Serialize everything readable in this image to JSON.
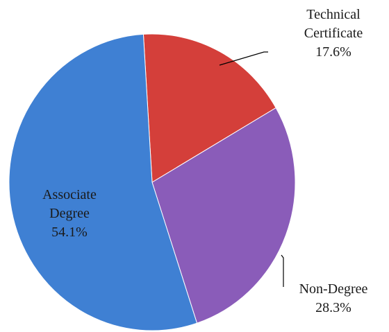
{
  "chart_data": {
    "type": "pie",
    "categories": [
      "Technical Certificate",
      "Non-Degree",
      "Associate Degree"
    ],
    "values": [
      17.6,
      28.3,
      54.1
    ],
    "value_labels": [
      "17.6%",
      "28.3%",
      "54.1%"
    ],
    "colors": [
      "#d43f3a",
      "#8a5cb9",
      "#3f80d3"
    ]
  }
}
